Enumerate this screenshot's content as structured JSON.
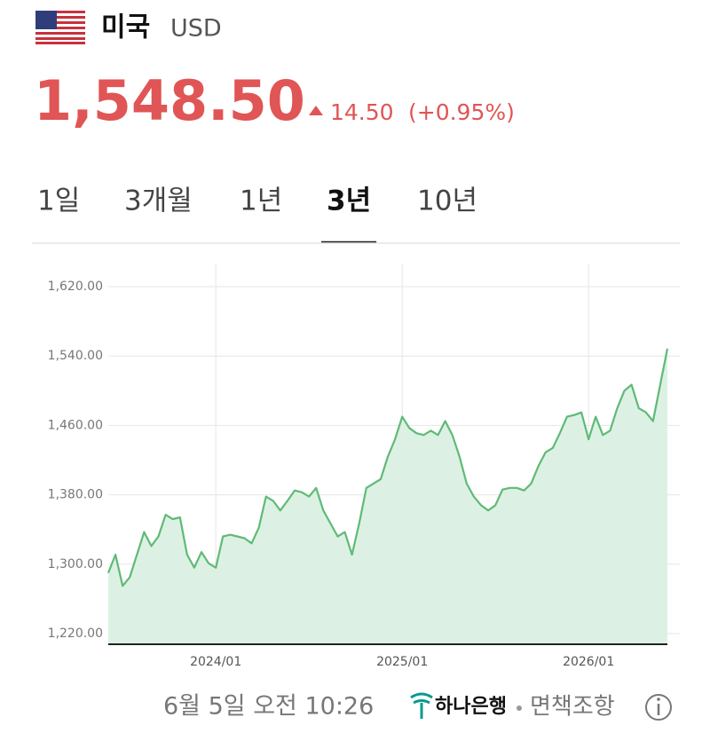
{
  "header": {
    "country": "미국",
    "currency": "USD",
    "price": "1,548.50",
    "change": "14.50",
    "change_pct": "(+0.95%)"
  },
  "tabs": [
    "1일",
    "3개월",
    "1년",
    "3년",
    "10년"
  ],
  "selected_tab": 3,
  "chart_data": {
    "type": "area",
    "color": "#5fba77",
    "fill_color": "#dcf1e3",
    "grid": true,
    "categories": [
      null,
      null,
      null,
      null,
      null,
      null,
      null,
      null,
      null,
      null,
      null,
      null,
      null,
      null,
      null,
      "2024/01",
      null,
      null,
      null,
      null,
      null,
      null,
      null,
      null,
      null,
      null,
      null,
      null,
      null,
      null,
      null,
      null,
      null,
      null,
      null,
      null,
      null,
      null,
      null,
      null,
      null,
      "2025/01",
      null,
      null,
      null,
      null,
      null,
      null,
      null,
      null,
      null,
      null,
      null,
      null,
      null,
      null,
      null,
      null,
      null,
      null,
      null,
      null,
      null,
      null,
      null,
      null,
      null,
      "2026/01",
      null,
      null,
      null,
      null,
      null,
      null,
      null,
      null,
      null,
      null,
      null
    ],
    "values": [
      1290,
      1311,
      1275,
      1285,
      1311,
      1337,
      1321,
      1332,
      1357,
      1352,
      1354,
      1311,
      1296,
      1314,
      1301,
      1296,
      1332,
      1334,
      1332,
      1330,
      1324,
      1342,
      1378,
      1373,
      1362,
      1373,
      1385,
      1383,
      1378,
      1388,
      1362,
      1347,
      1332,
      1337,
      1311,
      1347,
      1388,
      1393,
      1398,
      1424,
      1444,
      1470,
      1457,
      1451,
      1449,
      1454,
      1449,
      1465,
      1449,
      1424,
      1393,
      1378,
      1368,
      1362,
      1368,
      1386,
      1388,
      1388,
      1385,
      1393,
      1413,
      1429,
      1434,
      1451,
      1470,
      1472,
      1475,
      1444,
      1470,
      1449,
      1454,
      1480,
      1500,
      1507,
      1480,
      1475,
      1465,
      1507,
      1548.5
    ],
    "ylim": [
      1220,
      1620
    ],
    "yticks": [
      {
        "value": 1220,
        "label": "1,220.00"
      },
      {
        "value": 1300,
        "label": "1,300.00"
      },
      {
        "value": 1380,
        "label": "1,380.00"
      },
      {
        "value": 1460,
        "label": "1,460.00"
      },
      {
        "value": 1540,
        "label": "1,540.00"
      },
      {
        "value": 1620,
        "label": "1,620.00"
      }
    ]
  },
  "footer": {
    "timestamp": "6월 5일 오전 10:26",
    "source": "하나은행",
    "disclaimer": "면책조항"
  }
}
